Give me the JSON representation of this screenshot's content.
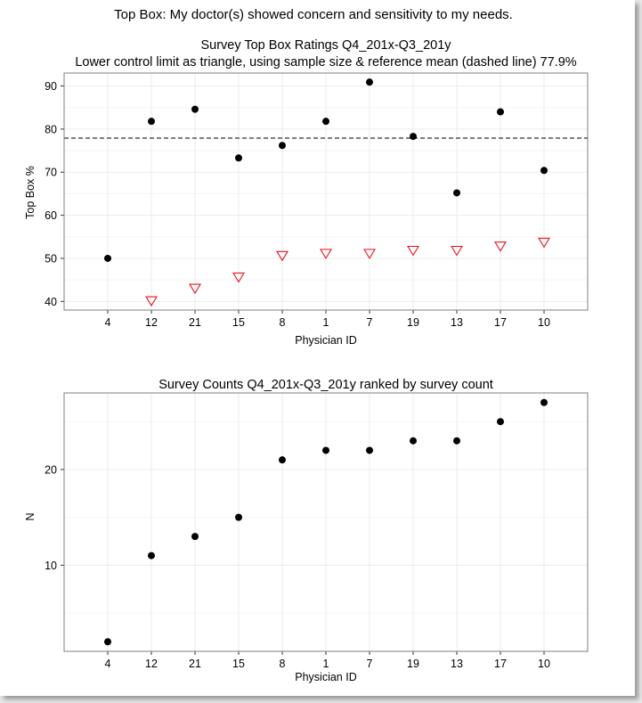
{
  "page": {
    "title": "Top Box: My doctor(s) showed concern and sensitivity to my needs."
  },
  "chart_data": [
    {
      "type": "scatter",
      "title": "Survey Top Box Ratings Q4_201x-Q3_201y",
      "subtitle": "Lower control limit as triangle, using sample size & reference mean (dashed line) 77.9%",
      "xlabel": "Physician ID",
      "ylabel": "Top Box %",
      "categories": [
        "4",
        "12",
        "21",
        "15",
        "8",
        "1",
        "7",
        "19",
        "13",
        "17",
        "10"
      ],
      "ylim": [
        38,
        93
      ],
      "yticks": [
        40,
        50,
        60,
        70,
        80,
        90
      ],
      "reference_line": 77.9,
      "series": [
        {
          "values": [
            50,
            81.8,
            84.6,
            73.3,
            76.2,
            81.8,
            90.9,
            78.3,
            65.2,
            84.0,
            70.4
          ],
          "marker": "circle",
          "color": "#000000"
        },
        {
          "values": [
            null,
            40.2,
            43.1,
            45.7,
            50.7,
            51.2,
            51.2,
            51.9,
            51.9,
            52.9,
            53.8
          ],
          "marker": "triangle-down-open",
          "color": "#e8141c"
        }
      ],
      "grid": true
    },
    {
      "type": "scatter",
      "title": "Survey Counts Q4_201x-Q3_201y ranked by survey count",
      "xlabel": "Physician ID",
      "ylabel": "N",
      "categories": [
        "4",
        "12",
        "21",
        "15",
        "8",
        "1",
        "7",
        "19",
        "13",
        "17",
        "10"
      ],
      "ylim": [
        1,
        28
      ],
      "yticks": [
        10,
        20
      ],
      "series": [
        {
          "values": [
            2,
            11,
            13,
            15,
            21,
            22,
            22,
            23,
            23,
            25,
            27
          ],
          "marker": "circle",
          "color": "#000000"
        }
      ],
      "grid": true
    }
  ]
}
